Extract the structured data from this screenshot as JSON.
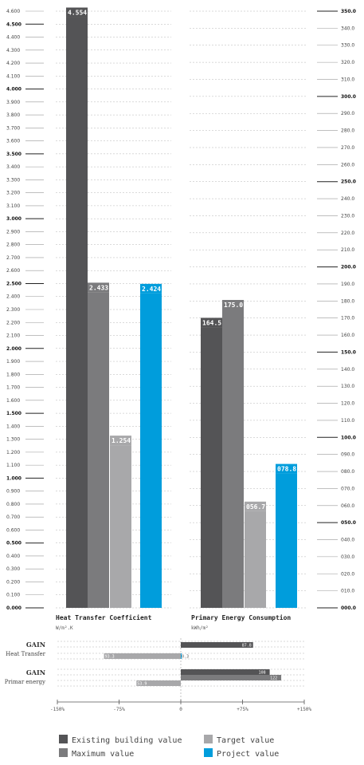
{
  "colors": {
    "existing": "#545456",
    "maximum": "#7b7b7d",
    "target": "#a8a8aa",
    "project": "#009ddc"
  },
  "chart_data": [
    {
      "type": "bar",
      "title": "Heat Transfer Coefficient",
      "ylabel": "W/m².K",
      "ylim": [
        0,
        4.6
      ],
      "ticks": [
        "0.000",
        "0.100",
        "0.200",
        "0.300",
        "0.400",
        "0.500",
        "0.600",
        "0.700",
        "0.800",
        "0.900",
        "1.000",
        "1.100",
        "1.200",
        "1.300",
        "1.400",
        "1.500",
        "1.600",
        "1.700",
        "1.800",
        "1.900",
        "2.000",
        "2.100",
        "2.200",
        "2.300",
        "2.400",
        "2.500",
        "2.600",
        "2.700",
        "2.800",
        "2.900",
        "3.000",
        "3.100",
        "3.200",
        "3.300",
        "3.400",
        "3.500",
        "3.600",
        "3.700",
        "3.800",
        "3.900",
        "4.000",
        "4.100",
        "4.200",
        "4.300",
        "4.400",
        "4.500",
        "4.600"
      ],
      "series": [
        {
          "name": "Existing building value",
          "value": 4.554,
          "label": "4.554"
        },
        {
          "name": "Maximum value",
          "value": 2.433,
          "label": "2.433"
        },
        {
          "name": "Target value",
          "value": 1.254,
          "label": "1.254"
        },
        {
          "name": "Project value",
          "value": 2.424,
          "label": "2.424"
        }
      ]
    },
    {
      "type": "bar",
      "title": "Primary Energy Consumption",
      "ylabel": "kWh/m²",
      "ylim": [
        0,
        350
      ],
      "ticks": [
        "000.0",
        "010.0",
        "020.0",
        "030.0",
        "040.0",
        "050.0",
        "060.0",
        "070.0",
        "080.0",
        "090.0",
        "100.0",
        "110.0",
        "120.0",
        "130.0",
        "140.0",
        "150.0",
        "160.0",
        "170.0",
        "180.0",
        "190.0",
        "200.0",
        "210.0",
        "220.0",
        "230.0",
        "240.0",
        "250.0",
        "260.0",
        "270.0",
        "280.0",
        "290.0",
        "300.0",
        "310.0",
        "320.0",
        "330.0",
        "340.0",
        "350.0"
      ],
      "series": [
        {
          "name": "Existing building value",
          "value": 164.5,
          "label": "164.5"
        },
        {
          "name": "Maximum value",
          "value": 175.0,
          "label": "175.0"
        },
        {
          "name": "Target value",
          "value": 56.7,
          "label": "056.7"
        },
        {
          "name": "Project value",
          "value": 78.8,
          "label": "078.8"
        }
      ]
    },
    {
      "type": "bar",
      "title": "GAIN",
      "xlim": [
        -150,
        150
      ],
      "xticks": [
        "-150%",
        "-75%",
        "0",
        "+75%",
        "+150%"
      ],
      "groups": [
        {
          "label": "Heat Transfer",
          "bars": [
            {
              "series": "Existing building value",
              "value": 87.8,
              "label": "87.8"
            },
            {
              "series": "Target value",
              "value": -93.3,
              "label": "93.3"
            },
            {
              "series": "Project value",
              "value": 0.3,
              "label": "0.3"
            }
          ]
        },
        {
          "label": "Primar energy",
          "bars": [
            {
              "series": "Existing building value",
              "value": 108,
              "label": "108"
            },
            {
              "series": "Maximum value",
              "value": 122,
              "label": "122"
            },
            {
              "series": "Target value",
              "value": -53.9,
              "label": "53.9"
            }
          ]
        }
      ]
    }
  ],
  "legend": [
    {
      "label": "Existing building value",
      "series": "existing"
    },
    {
      "label": "Target value",
      "series": "target"
    },
    {
      "label": "Maximum value",
      "series": "maximum"
    },
    {
      "label": "Project value",
      "series": "project"
    }
  ]
}
